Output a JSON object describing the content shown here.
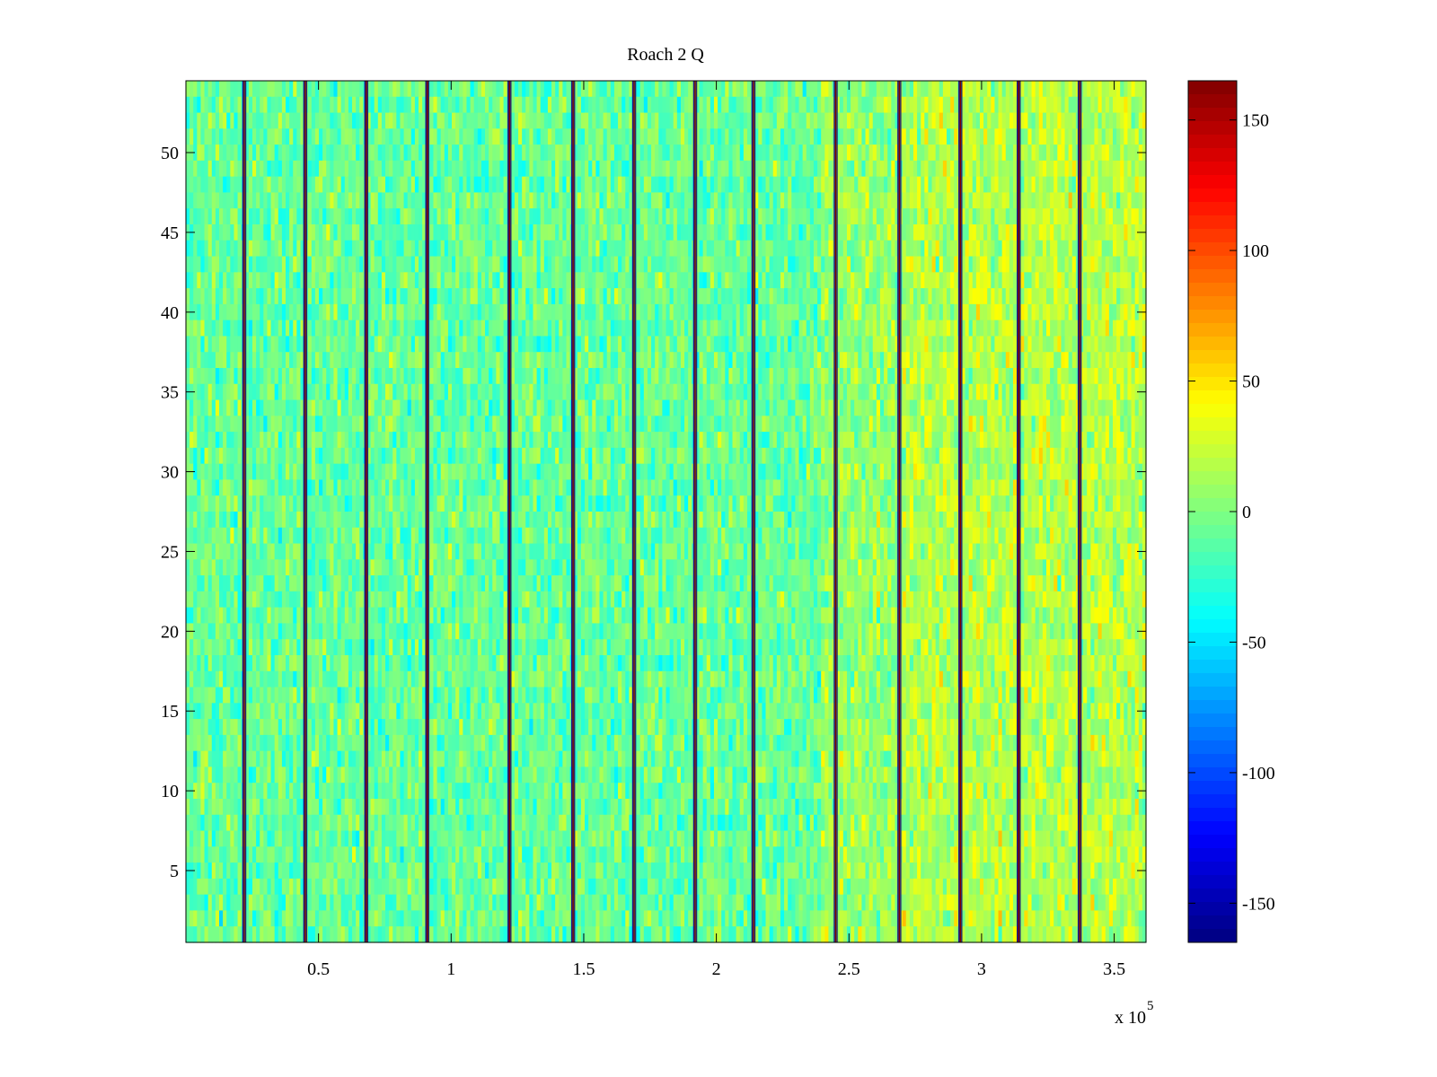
{
  "chart_data": {
    "type": "heatmap",
    "title": "Roach 2 Q",
    "xlabel": "",
    "ylabel": "",
    "x_range": [
      0,
      362000
    ],
    "y_range": [
      0.5,
      54.5
    ],
    "n_rows": 54,
    "x_ticks": [
      50000,
      100000,
      150000,
      200000,
      250000,
      300000,
      350000
    ],
    "x_tick_labels": [
      "0.5",
      "1",
      "1.5",
      "2",
      "2.5",
      "3",
      "3.5"
    ],
    "x_exponent_label": "x 10",
    "x_exponent_power": "5",
    "y_ticks": [
      5,
      10,
      15,
      20,
      25,
      30,
      35,
      40,
      45,
      50
    ],
    "y_tick_labels": [
      "5",
      "10",
      "15",
      "20",
      "25",
      "30",
      "35",
      "40",
      "45",
      "50"
    ],
    "colormap": "jet",
    "color_limits": [
      -165,
      165
    ],
    "colorbar_ticks": [
      150,
      100,
      50,
      0,
      -50,
      -100,
      -150
    ],
    "colorbar_tick_labels": [
      "150",
      "100",
      "50",
      "0",
      "-50",
      "-100",
      "-150"
    ],
    "vertical_stripe_positions": [
      22000,
      45000,
      68000,
      91000,
      122000,
      146000,
      169000,
      192000,
      214000,
      245000,
      269000,
      292000,
      314000,
      337000
    ],
    "region_mean_values": [
      {
        "x_start": 0,
        "x_end": 240000,
        "mean": -8
      },
      {
        "x_start": 240000,
        "x_end": 270000,
        "mean": 8
      },
      {
        "x_start": 270000,
        "x_end": 362000,
        "mean": 18
      }
    ]
  }
}
